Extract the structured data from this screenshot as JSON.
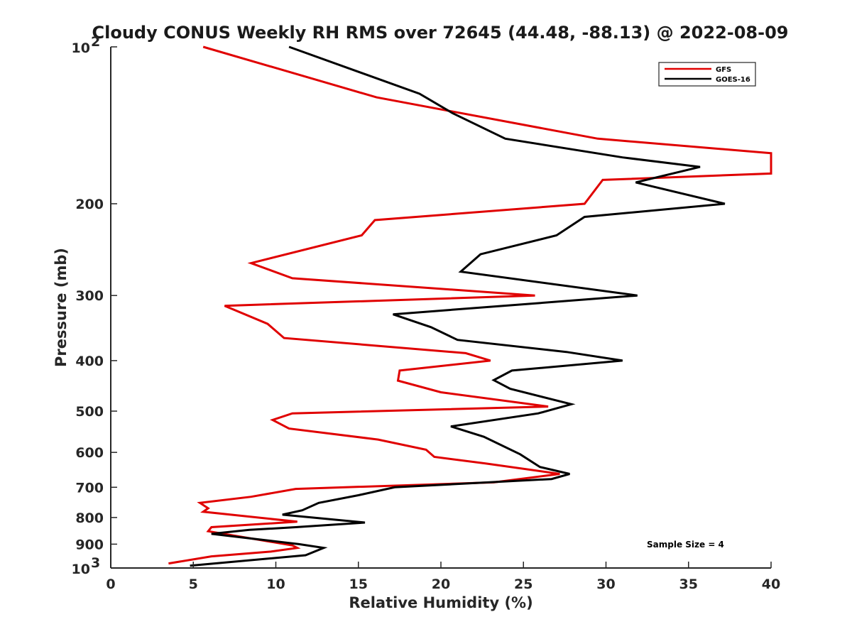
{
  "chart_data": {
    "type": "line",
    "title": "Cloudy CONUS Weekly RH RMS over 72645 (44.48, -88.13) @ 2022-08-09",
    "xlabel": "Relative Humidity (%)",
    "ylabel": "Pressure (mb)",
    "xlim": [
      0,
      40
    ],
    "ylim": [
      100,
      1000
    ],
    "y_scale": "log",
    "y_reversed": true,
    "grid": false,
    "legend_position": "top-right",
    "x_ticks": [
      "0",
      "5",
      "10",
      "15",
      "20",
      "25",
      "30",
      "35",
      "40"
    ],
    "y_ticks": [
      {
        "value": 100,
        "base": "10",
        "exp": "2"
      },
      {
        "value": 200,
        "label": "200"
      },
      {
        "value": 300,
        "label": "300"
      },
      {
        "value": 400,
        "label": "400"
      },
      {
        "value": 500,
        "label": "500"
      },
      {
        "value": 600,
        "label": "600"
      },
      {
        "value": 700,
        "label": "700"
      },
      {
        "value": 800,
        "label": "800"
      },
      {
        "value": 900,
        "label": "900"
      },
      {
        "value": 1000,
        "base": "10",
        "exp": "3"
      }
    ],
    "series": [
      {
        "name": "GFS",
        "color": "#e00000",
        "points": [
          [
            5.6,
            100
          ],
          [
            16.1,
            125
          ],
          [
            29.5,
            150
          ],
          [
            40.0,
            160
          ],
          [
            40.0,
            175
          ],
          [
            29.8,
            180
          ],
          [
            28.7,
            200
          ],
          [
            16.0,
            215
          ],
          [
            15.2,
            230
          ],
          [
            8.5,
            260
          ],
          [
            11.0,
            278
          ],
          [
            25.7,
            300
          ],
          [
            6.9,
            314
          ],
          [
            9.5,
            340
          ],
          [
            10.5,
            362
          ],
          [
            21.5,
            387
          ],
          [
            23.0,
            400
          ],
          [
            17.5,
            418
          ],
          [
            17.4,
            437
          ],
          [
            20.0,
            460
          ],
          [
            26.5,
            490
          ],
          [
            11.0,
            505
          ],
          [
            9.8,
            520
          ],
          [
            10.8,
            540
          ],
          [
            16.2,
            567
          ],
          [
            19.1,
            593
          ],
          [
            19.6,
            612
          ],
          [
            22.7,
            630
          ],
          [
            27.2,
            660
          ],
          [
            23.2,
            685
          ],
          [
            11.2,
            705
          ],
          [
            8.5,
            730
          ],
          [
            5.4,
            750
          ],
          [
            5.9,
            768
          ],
          [
            5.6,
            780
          ],
          [
            11.3,
            815
          ],
          [
            6.1,
            835
          ],
          [
            5.9,
            850
          ],
          [
            11.0,
            905
          ],
          [
            11.3,
            915
          ],
          [
            9.7,
            930
          ],
          [
            6.1,
            950
          ],
          [
            3.5,
            980
          ]
        ]
      },
      {
        "name": "GOES-16",
        "color": "#000000",
        "points": [
          [
            10.8,
            100
          ],
          [
            18.7,
            123
          ],
          [
            20.7,
            134
          ],
          [
            23.9,
            150
          ],
          [
            31.0,
            163
          ],
          [
            35.7,
            170
          ],
          [
            31.8,
            182
          ],
          [
            37.2,
            200
          ],
          [
            28.7,
            212
          ],
          [
            27.0,
            230
          ],
          [
            22.4,
            250
          ],
          [
            21.2,
            270
          ],
          [
            31.9,
            300
          ],
          [
            17.1,
            326
          ],
          [
            19.4,
            345
          ],
          [
            21.0,
            365
          ],
          [
            27.6,
            385
          ],
          [
            31.0,
            400
          ],
          [
            24.3,
            418
          ],
          [
            23.2,
            436
          ],
          [
            24.2,
            453
          ],
          [
            27.9,
            485
          ],
          [
            25.9,
            505
          ],
          [
            20.6,
            535
          ],
          [
            22.6,
            560
          ],
          [
            24.8,
            605
          ],
          [
            26.0,
            640
          ],
          [
            27.8,
            660
          ],
          [
            26.7,
            675
          ],
          [
            17.2,
            700
          ],
          [
            15.0,
            725
          ],
          [
            12.6,
            750
          ],
          [
            11.6,
            775
          ],
          [
            10.4,
            790
          ],
          [
            15.4,
            818
          ],
          [
            11.2,
            835
          ],
          [
            8.4,
            845
          ],
          [
            6.1,
            860
          ],
          [
            11.4,
            900
          ],
          [
            12.9,
            915
          ],
          [
            11.8,
            945
          ],
          [
            4.8,
            990
          ]
        ]
      }
    ],
    "annotation": "Sample Size = 4"
  }
}
